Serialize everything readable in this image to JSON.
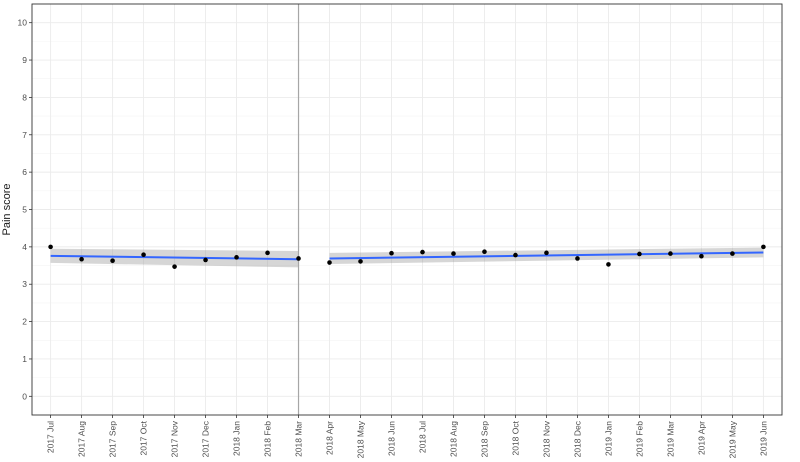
{
  "chart_data": {
    "type": "scatter",
    "title": "",
    "xlabel": "",
    "ylabel": "Pain score",
    "ylim": [
      -0.5,
      10.5
    ],
    "y_ticks": [
      0,
      1,
      2,
      3,
      4,
      5,
      6,
      7,
      8,
      9,
      10
    ],
    "grid": true,
    "categories": [
      "2017 Jul",
      "2017 Aug",
      "2017 Sep",
      "2017 Oct",
      "2017 Nov",
      "2017 Dec",
      "2018 Jan",
      "2018 Feb",
      "2018 Mar",
      "2018 Apr",
      "2018 May",
      "2018 Jun",
      "2018 Jul",
      "2018 Aug",
      "2018 Sep",
      "2018 Oct",
      "2018 Nov",
      "2018 Dec",
      "2019 Jan",
      "2019 Feb",
      "2019 Mar",
      "2019 Apr",
      "2019 May",
      "2019 Jun"
    ],
    "values": [
      4.0,
      3.67,
      3.63,
      3.79,
      3.47,
      3.65,
      3.72,
      3.84,
      3.69,
      3.58,
      3.61,
      3.83,
      3.86,
      3.82,
      3.87,
      3.78,
      3.84,
      3.69,
      3.53,
      3.81,
      3.82,
      3.75,
      3.82,
      4.0
    ],
    "intervention_line": "2018 Mar",
    "trend_segments": [
      {
        "start": "2017 Jul",
        "end": "2018 Mar",
        "y_start": 3.76,
        "y_end": 3.67,
        "ci_start": [
          3.57,
          3.95
        ],
        "ci_end": [
          3.45,
          3.89
        ]
      },
      {
        "start": "2018 Apr",
        "end": "2019 Jun",
        "y_start": 3.69,
        "y_end": 3.85,
        "ci_start": [
          3.54,
          3.84
        ],
        "ci_end": [
          3.72,
          3.98
        ]
      }
    ],
    "colors": {
      "points": "#000000",
      "trend": "#3366ff",
      "ribbon": "#999999",
      "vline": "#a6a6a6",
      "grid": "#ebebeb",
      "border": "#333333"
    }
  }
}
